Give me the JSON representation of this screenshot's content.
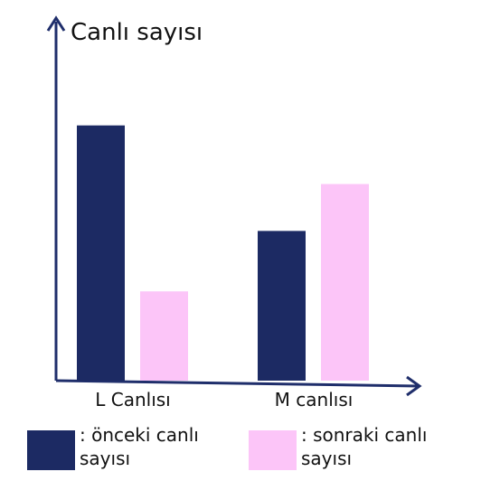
{
  "chart_data": {
    "type": "bar",
    "title": "Canlı sayısı",
    "categories": [
      "L Canlısı",
      "M canlısı"
    ],
    "series": [
      {
        "name": ": önceki canlı sayısı",
        "color": "#1c2a63",
        "values": [
          283,
          166
        ]
      },
      {
        "name": ": sonraki canlı sayısı",
        "color": "#fcc5f8",
        "values": [
          99,
          218
        ]
      }
    ],
    "ylim": [
      0,
      400
    ]
  }
}
